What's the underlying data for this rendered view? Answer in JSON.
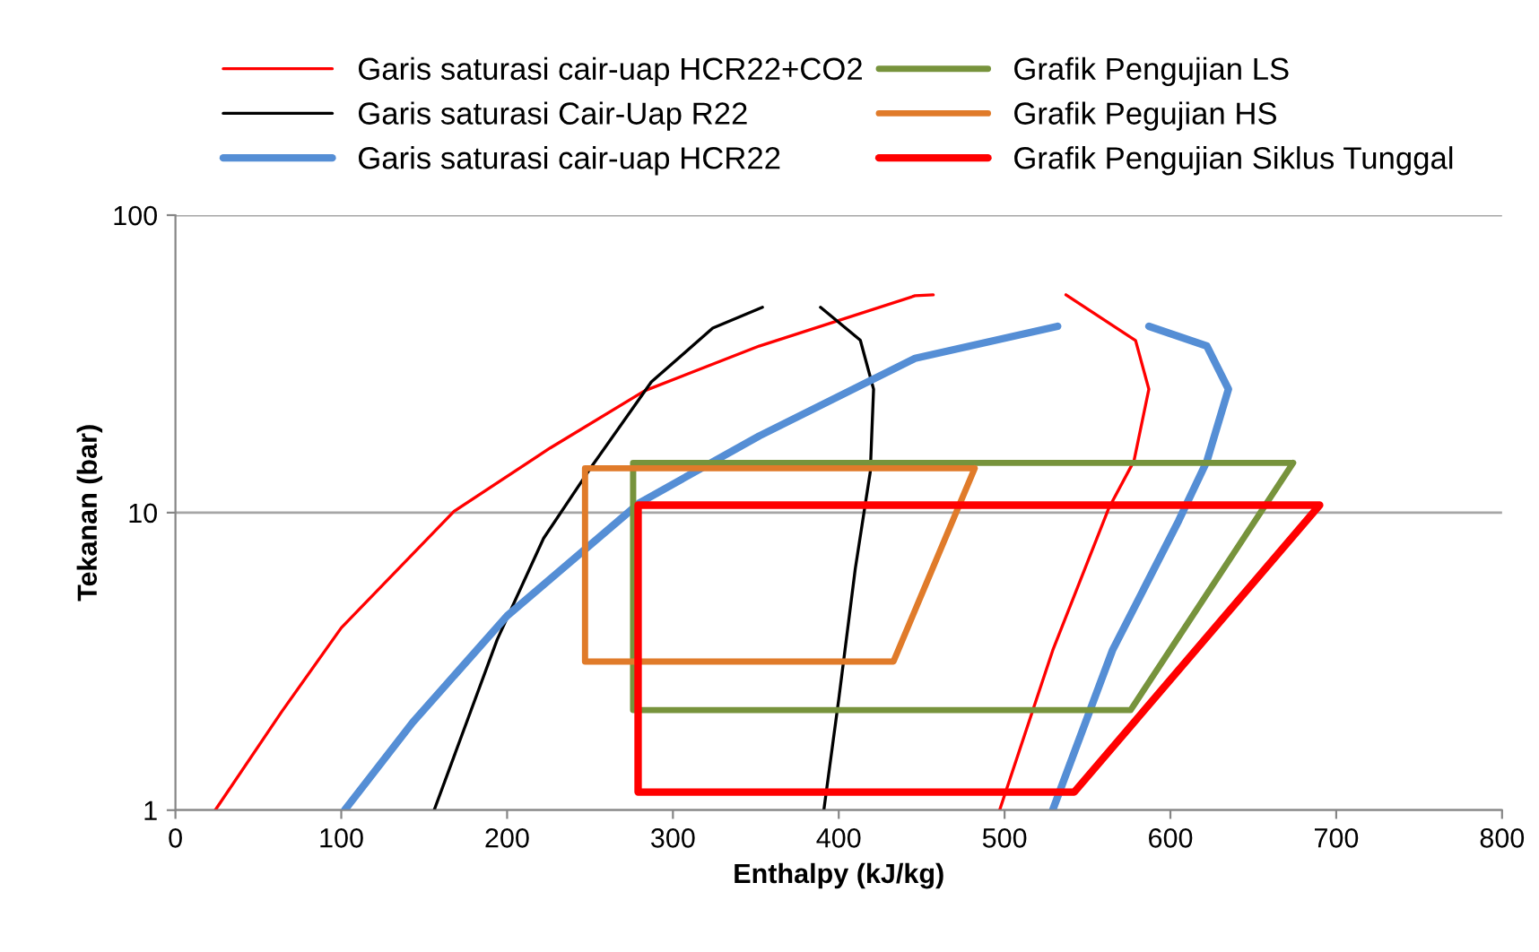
{
  "chart_data": {
    "type": "line",
    "xlabel": "Enthalpy (kJ/kg)",
    "ylabel": "Tekanan (bar)",
    "log": "y",
    "xlim": [
      0,
      800
    ],
    "xticks": [
      0,
      100,
      200,
      300,
      400,
      500,
      600,
      700,
      800
    ],
    "ylim": [
      1,
      100
    ],
    "yticks": [
      1,
      10,
      100
    ],
    "grid": "y",
    "legend": "top",
    "marker": "none",
    "line_style": "solid",
    "series": [
      {
        "name": "Garis saturasi cair-uap HCR22+CO2",
        "color": "#ff0000",
        "x": [
          24,
          64,
          100,
          168,
          226,
          283,
          352,
          446,
          457,
          null,
          537,
          579,
          587,
          578,
          563,
          529,
          497
        ],
        "values": [
          1,
          2.14,
          4.1,
          10.1,
          16.5,
          25.7,
          36.3,
          53.6,
          54,
          null,
          54,
          37.9,
          26,
          14.9,
          10.4,
          3.44,
          1
        ]
      },
      {
        "name": "Garis saturasi Cair-Uap R22",
        "color": "#000000",
        "x": [
          156,
          194,
          222,
          251,
          287,
          324,
          354,
          null,
          389,
          413,
          421,
          419,
          410,
          400,
          391
        ],
        "values": [
          1,
          3.74,
          8.2,
          14.3,
          27.5,
          41.7,
          49,
          null,
          49,
          38,
          26,
          13.7,
          6.5,
          2.36,
          1
        ]
      },
      {
        "name": "Garis saturasi cair-uap HCR22",
        "color": "#558ed5",
        "x": [
          102,
          143,
          200,
          280,
          352,
          446,
          532,
          null,
          587,
          622,
          635,
          622,
          605,
          565,
          529
        ],
        "values": [
          1,
          1.97,
          4.5,
          10.8,
          18.1,
          33,
          42.3,
          null,
          42.3,
          36.3,
          26,
          14.9,
          9.4,
          3.44,
          1
        ]
      },
      {
        "name": "Grafik Pengujian LS",
        "color": "#77933c",
        "x": [
          276,
          276,
          674,
          null,
          674,
          576,
          276
        ],
        "values": [
          2.17,
          14.7,
          14.7,
          null,
          14.7,
          2.17,
          2.17
        ]
      },
      {
        "name": "Grafik Pegujian HS",
        "color": "#e07b2a",
        "x": [
          247,
          247,
          482,
          null,
          482,
          433,
          247
        ],
        "values": [
          3.16,
          14.1,
          14.1,
          null,
          14.1,
          3.16,
          3.16
        ]
      },
      {
        "name": "Grafik Pengujian Siklus Tunggal",
        "color": "#ff0000",
        "x": [
          279,
          279,
          690,
          null,
          690,
          542,
          279
        ],
        "values": [
          1.15,
          10.6,
          10.6,
          null,
          10.6,
          1.15,
          1.15
        ]
      }
    ]
  }
}
